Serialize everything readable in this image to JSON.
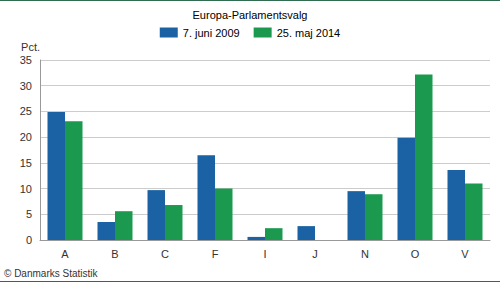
{
  "chart_data": {
    "type": "bar",
    "title": "Europa-Parlamentsvalg",
    "ylabel": "Pct.",
    "categories": [
      "A",
      "B",
      "C",
      "F",
      "I",
      "J",
      "N",
      "O",
      "V"
    ],
    "series": [
      {
        "name": "7. juni 2009",
        "color": "#1a62a3",
        "values": [
          24.9,
          3.5,
          9.7,
          16.5,
          0.6,
          2.7,
          9.5,
          19.9,
          13.6
        ]
      },
      {
        "name": "25. maj 2014",
        "color": "#1b9a4f",
        "values": [
          23.1,
          5.6,
          6.8,
          10.0,
          2.3,
          null,
          8.9,
          32.2,
          11.0
        ]
      }
    ],
    "ylim": [
      0,
      35
    ],
    "yticks": [
      0,
      5,
      10,
      15,
      20,
      25,
      30,
      35
    ],
    "grid": true,
    "legend": "top",
    "annotations": [
      "© Danmarks Statistik"
    ]
  }
}
